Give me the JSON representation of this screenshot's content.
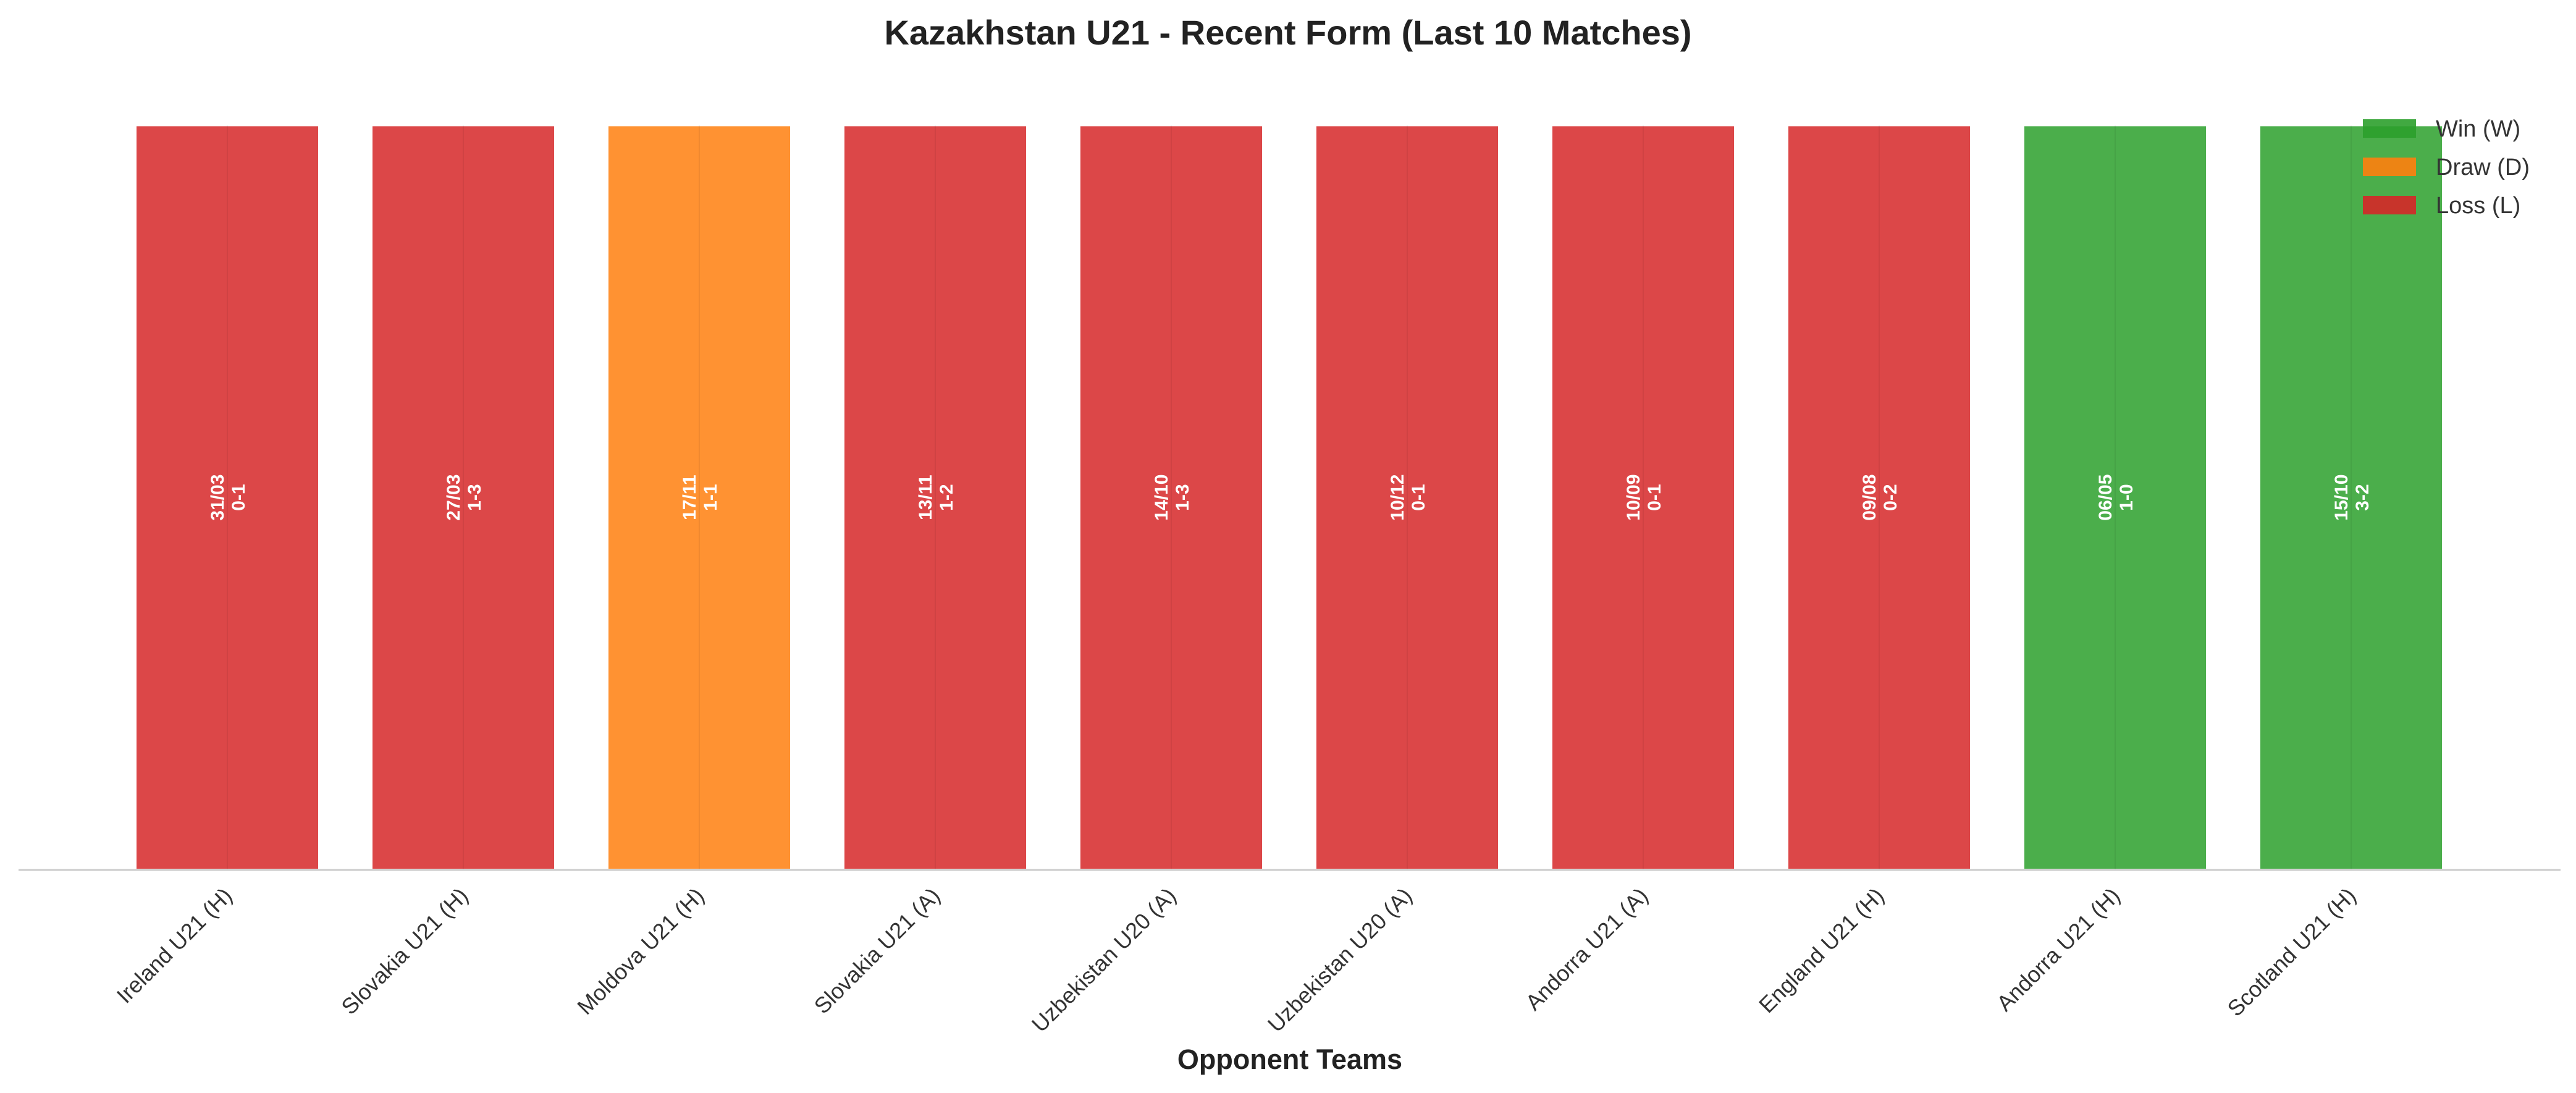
{
  "chart_data": {
    "type": "bar",
    "title": "Kazakhstan U21 - Recent Form (Last 10 Matches)",
    "xlabel": "Opponent Teams",
    "ylabel": "",
    "grid": false,
    "legend_position": "top-right",
    "categories": [
      "Ireland U21 (H)",
      "Slovakia U21 (H)",
      "Moldova U21 (H)",
      "Slovakia U21 (A)",
      "Uzbekistan U20 (A)",
      "Uzbekistan U20 (A)",
      "Andorra U21 (A)",
      "England U21 (H)",
      "Andorra U21 (H)",
      "Scotland U21 (H)"
    ],
    "values": [
      1,
      1,
      1,
      1,
      1,
      1,
      1,
      1,
      1,
      1
    ],
    "results": [
      "L",
      "L",
      "D",
      "L",
      "L",
      "L",
      "L",
      "L",
      "W",
      "W"
    ],
    "dates": [
      "31/03",
      "27/03",
      "17/11",
      "13/11",
      "14/10",
      "10/12",
      "10/09",
      "09/08",
      "06/05",
      "15/10"
    ],
    "scores": [
      "0-1",
      "1-3",
      "1-1",
      "1-2",
      "1-3",
      "0-1",
      "0-1",
      "0-2",
      "1-0",
      "3-2"
    ],
    "ylim": [
      0,
      1.06
    ],
    "legend": [
      {
        "key": "W",
        "label": "Win (W)",
        "color": "#2ca02c"
      },
      {
        "key": "D",
        "label": "Draw (D)",
        "color": "#ff7f0e"
      },
      {
        "key": "L",
        "label": "Loss (L)",
        "color": "#d62728"
      }
    ]
  }
}
